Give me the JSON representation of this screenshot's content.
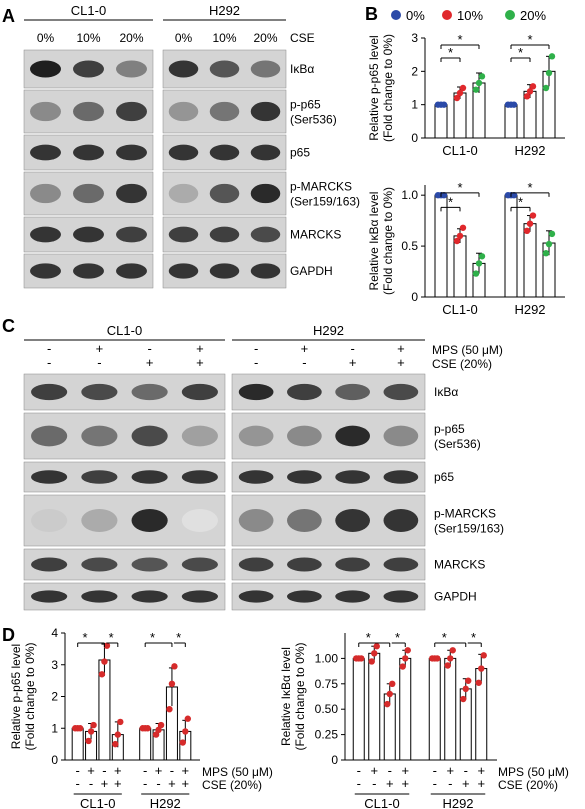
{
  "panelA": {
    "letter": "A",
    "cells": [
      "CL1-0",
      "H292"
    ],
    "cse_label": "CSE",
    "doses": [
      "0%",
      "10%",
      "20%"
    ],
    "proteins": [
      "IκBα",
      "p-p65\n(Ser536)",
      "p65",
      "p-MARCKS\n(Ser159/163)",
      "MARCKS",
      "GAPDH"
    ],
    "bands": {
      "CL1-0": [
        [
          0.95,
          0.8,
          0.5
        ],
        [
          0.45,
          0.6,
          0.8
        ],
        [
          0.85,
          0.85,
          0.85
        ],
        [
          0.45,
          0.6,
          0.85
        ],
        [
          0.85,
          0.85,
          0.8
        ],
        [
          0.85,
          0.85,
          0.85
        ]
      ],
      "H292": [
        [
          0.85,
          0.7,
          0.55
        ],
        [
          0.4,
          0.55,
          0.85
        ],
        [
          0.85,
          0.85,
          0.85
        ],
        [
          0.3,
          0.7,
          0.9
        ],
        [
          0.8,
          0.8,
          0.75
        ],
        [
          0.85,
          0.85,
          0.85
        ]
      ]
    }
  },
  "panelB": {
    "letter": "B",
    "legend": [
      {
        "label": "0%",
        "color": "#2b4aa8"
      },
      {
        "label": "10%",
        "color": "#e0282c"
      },
      {
        "label": "20%",
        "color": "#2fb04a"
      }
    ],
    "top": {
      "ylabel": "Relative p-p65 level\n(Fold change to 0%)",
      "ylim": [
        0,
        3
      ],
      "yticks": [
        "0",
        "1",
        "2",
        "3"
      ],
      "categories": [
        "CL1-0",
        "H292"
      ],
      "series": [
        {
          "values": [
            1.0,
            1.0
          ],
          "err": [
            0.03,
            0.03
          ]
        },
        {
          "values": [
            1.35,
            1.4
          ],
          "err": [
            0.18,
            0.2
          ]
        },
        {
          "values": [
            1.65,
            2.0
          ],
          "err": [
            0.3,
            0.45
          ]
        }
      ],
      "points": [
        [
          [
            1,
            1,
            1
          ],
          [
            1,
            1,
            1
          ]
        ],
        [
          [
            1.2,
            1.35,
            1.5
          ],
          [
            1.25,
            1.4,
            1.55
          ]
        ],
        [
          [
            1.45,
            1.65,
            1.85
          ],
          [
            1.5,
            1.95,
            2.45
          ]
        ]
      ],
      "sig": [
        "*",
        "*"
      ]
    },
    "bottom": {
      "ylabel": "Relative IκBα level\n(Fold change to 0%)",
      "ylim": [
        0,
        1.1
      ],
      "yticks": [
        "0",
        "0.5",
        "1.0"
      ],
      "categories": [
        "CL1-0",
        "H292"
      ],
      "series": [
        {
          "values": [
            1.0,
            1.0
          ],
          "err": [
            0.01,
            0.01
          ]
        },
        {
          "values": [
            0.6,
            0.72
          ],
          "err": [
            0.07,
            0.08
          ]
        },
        {
          "values": [
            0.33,
            0.53
          ],
          "err": [
            0.1,
            0.12
          ]
        }
      ],
      "points": [
        [
          [
            1,
            1,
            1
          ],
          [
            1,
            1,
            1
          ]
        ],
        [
          [
            0.55,
            0.6,
            0.68
          ],
          [
            0.65,
            0.72,
            0.8
          ]
        ],
        [
          [
            0.23,
            0.33,
            0.4
          ],
          [
            0.43,
            0.52,
            0.62
          ]
        ]
      ],
      "sig": [
        "*",
        "*"
      ]
    }
  },
  "panelC": {
    "letter": "C",
    "cells": [
      "CL1-0",
      "H292"
    ],
    "mps_label": "MPS (50 μM)",
    "cse_label": "CSE (20%)",
    "mps": [
      "-",
      "+",
      "-",
      "+"
    ],
    "cse": [
      "-",
      "-",
      "+",
      "+"
    ],
    "proteins": [
      "IκBα",
      "p-p65\n(Ser536)",
      "p65",
      "p-MARCKS\n(Ser159/163)",
      "MARCKS",
      "GAPDH"
    ],
    "bands": {
      "CL1-0": [
        [
          0.8,
          0.75,
          0.6,
          0.8
        ],
        [
          0.6,
          0.55,
          0.75,
          0.35
        ],
        [
          0.85,
          0.8,
          0.85,
          0.85
        ],
        [
          0.15,
          0.3,
          0.9,
          0.05
        ],
        [
          0.8,
          0.75,
          0.7,
          0.75
        ],
        [
          0.85,
          0.85,
          0.85,
          0.85
        ]
      ],
      "H292": [
        [
          0.9,
          0.8,
          0.65,
          0.75
        ],
        [
          0.4,
          0.45,
          0.9,
          0.45
        ],
        [
          0.85,
          0.85,
          0.85,
          0.85
        ],
        [
          0.45,
          0.55,
          0.85,
          0.85
        ],
        [
          0.8,
          0.8,
          0.8,
          0.8
        ],
        [
          0.85,
          0.85,
          0.85,
          0.85
        ]
      ]
    }
  },
  "panelD": {
    "letter": "D",
    "mps_label": "MPS (50 μM)",
    "cse_label": "CSE (20%)",
    "mps": [
      "-",
      "+",
      "-",
      "+"
    ],
    "cse": [
      "-",
      "-",
      "+",
      "+"
    ],
    "categories": [
      "CL1-0",
      "H292"
    ],
    "left": {
      "ylabel": "Relative p-p65 level\n(Fold change to 0%)",
      "ylim": [
        0,
        4
      ],
      "yticks": [
        "0",
        "1",
        "2",
        "3",
        "4"
      ],
      "values": [
        [
          1.0,
          0.9,
          3.15,
          0.8
        ],
        [
          1.0,
          0.95,
          2.3,
          0.9
        ]
      ],
      "err": [
        [
          0.03,
          0.25,
          0.5,
          0.4
        ],
        [
          0.03,
          0.2,
          0.6,
          0.35
        ]
      ],
      "points": [
        [
          [
            1,
            1,
            1
          ],
          [
            0.6,
            0.9,
            1.1
          ],
          [
            2.7,
            3.1,
            3.6
          ],
          [
            0.5,
            0.8,
            1.2
          ]
        ],
        [
          [
            1,
            1,
            1
          ],
          [
            0.8,
            0.95,
            1.1
          ],
          [
            1.6,
            2.4,
            2.95
          ],
          [
            0.55,
            0.9,
            1.3
          ]
        ]
      ],
      "sig": [
        "*",
        "*"
      ]
    },
    "right": {
      "ylabel": "Relative IκBα level\n(Fold change to 0%)",
      "ylim": [
        0,
        1.25
      ],
      "yticks": [
        "0",
        "0.25",
        "0.50",
        "0.75",
        "1.00"
      ],
      "values": [
        [
          1.0,
          1.05,
          0.65,
          1.0
        ],
        [
          1.0,
          1.0,
          0.7,
          0.9
        ]
      ],
      "err": [
        [
          0.01,
          0.07,
          0.1,
          0.08
        ],
        [
          0.01,
          0.08,
          0.1,
          0.14
        ]
      ],
      "points": [
        [
          [
            1,
            1,
            1
          ],
          [
            0.97,
            1.05,
            1.12
          ],
          [
            0.55,
            0.65,
            0.75
          ],
          [
            0.92,
            1.0,
            1.08
          ]
        ],
        [
          [
            1,
            1,
            1
          ],
          [
            0.93,
            1.0,
            1.08
          ],
          [
            0.6,
            0.7,
            0.78
          ],
          [
            0.76,
            0.9,
            1.03
          ]
        ]
      ],
      "sig": [
        "*",
        "*"
      ]
    }
  }
}
